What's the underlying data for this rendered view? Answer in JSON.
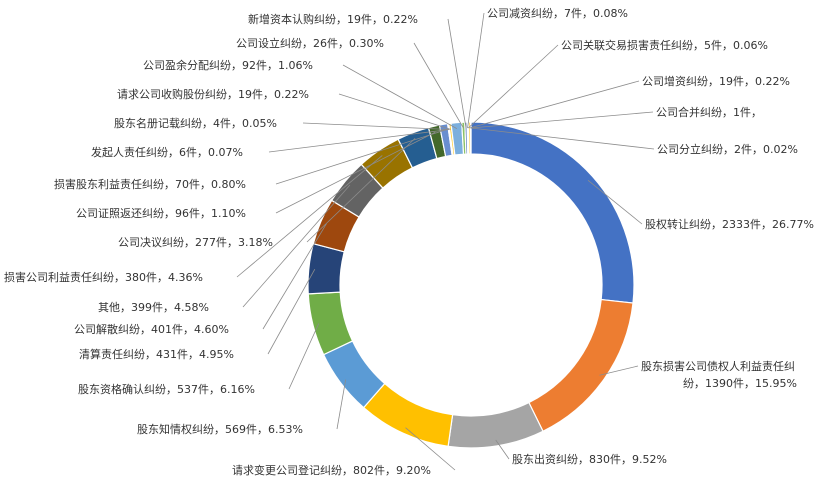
{
  "chart_data": {
    "type": "pie",
    "variant": "donut",
    "title": "",
    "legend": "none",
    "slices": [
      {
        "name": "股权转让纠纷",
        "value": 2333,
        "percent": "26.77%",
        "label": "股权转让纠纷，2333件，26.77%",
        "color": "#4472C4"
      },
      {
        "name": "股东损害公司债权人利益责任纠纷",
        "value": 1390,
        "percent": "15.95%",
        "label": "股东损害公司债权人利益责任纠纷，1390件，15.95%",
        "label_lines": [
          "股东损害公司债权人利益责任纠",
          "纷，1390件，15.95%"
        ],
        "color": "#ED7D31"
      },
      {
        "name": "股东出资纠纷",
        "value": 830,
        "percent": "9.52%",
        "label": "股东出资纠纷，830件，9.52%",
        "color": "#A5A5A5"
      },
      {
        "name": "请求变更公司登记纠纷",
        "value": 802,
        "percent": "9.20%",
        "label": "请求变更公司登记纠纷，802件，9.20%",
        "color": "#FFC000"
      },
      {
        "name": "股东知情权纠纷",
        "value": 569,
        "percent": "6.53%",
        "label": "股东知情权纠纷，569件，6.53%",
        "color": "#5B9BD5"
      },
      {
        "name": "股东资格确认纠纷",
        "value": 537,
        "percent": "6.16%",
        "label": "股东资格确认纠纷，537件，6.16%",
        "color": "#70AD47"
      },
      {
        "name": "清算责任纠纷",
        "value": 431,
        "percent": "4.95%",
        "label": "清算责任纠纷，431件，4.95%",
        "color": "#264478"
      },
      {
        "name": "公司解散纠纷",
        "value": 401,
        "percent": "4.60%",
        "label": "公司解散纠纷，401件，4.60%",
        "color": "#9E480E"
      },
      {
        "name": "其他",
        "value": 399,
        "percent": "4.58%",
        "label": "其他，399件，4.58%",
        "color": "#636363"
      },
      {
        "name": "损害公司利益责任纠纷",
        "value": 380,
        "percent": "4.36%",
        "label": "损害公司利益责任纠纷，380件，4.36%",
        "color": "#997300"
      },
      {
        "name": "公司决议纠纷",
        "value": 277,
        "percent": "3.18%",
        "label": "公司决议纠纷，277件，3.18%",
        "color": "#255E91"
      },
      {
        "name": "公司证照返还纠纷",
        "value": 96,
        "percent": "1.10%",
        "label": "公司证照返还纠纷，96件，1.10%",
        "color": "#43682B"
      },
      {
        "name": "损害股东利益责任纠纷",
        "value": 70,
        "percent": "0.80%",
        "label": "损害股东利益责任纠纷，70件，0.80%",
        "color": "#698ED0"
      },
      {
        "name": "发起人责任纠纷",
        "value": 6,
        "percent": "0.07%",
        "label": "发起人责任纠纷，6件，0.07%",
        "color": "#F1975A"
      },
      {
        "name": "股东名册记载纠纷",
        "value": 4,
        "percent": "0.05%",
        "label": "股东名册记载纠纷，4件，0.05%",
        "color": "#B7B7B7"
      },
      {
        "name": "请求公司收购股份纠纷",
        "value": 19,
        "percent": "0.22%",
        "label": "请求公司收购股份纠纷，19件，0.22%",
        "color": "#FFCD33"
      },
      {
        "name": "公司盈余分配纠纷",
        "value": 92,
        "percent": "1.06%",
        "label": "公司盈余分配纠纷，92件，1.06%",
        "color": "#7CAFDD"
      },
      {
        "name": "公司设立纠纷",
        "value": 26,
        "percent": "0.30%",
        "label": "公司设立纠纷，26件，0.30%",
        "color": "#8CC168"
      },
      {
        "name": "新增资本认购纠纷",
        "value": 19,
        "percent": "0.22%",
        "label": "新增资本认购纠纷，19件，0.22%",
        "color": "#5C7EBD"
      },
      {
        "name": "公司减资纠纷",
        "value": 7,
        "percent": "0.08%",
        "label": "公司减资纠纷，7件，0.08%",
        "color": "#F4B183"
      },
      {
        "name": "公司关联交易损害责任纠纷",
        "value": 5,
        "percent": "0.06%",
        "label": "公司关联交易损害责任纠纷，5件，0.06%",
        "color": "#C9C9C9"
      },
      {
        "name": "公司增资纠纷",
        "value": 19,
        "percent": "0.22%",
        "label": "公司增资纠纷，19件，0.22%",
        "color": "#FFD966"
      },
      {
        "name": "公司合并纠纷",
        "value": 1,
        "percent": "",
        "label": "公司合并纠纷，1件，",
        "color": "#9DC3E6"
      },
      {
        "name": "公司分立纠纷",
        "value": 2,
        "percent": "0.02%",
        "label": "公司分立纠纷，2件，0.02%",
        "color": "#A9D18E"
      }
    ]
  }
}
